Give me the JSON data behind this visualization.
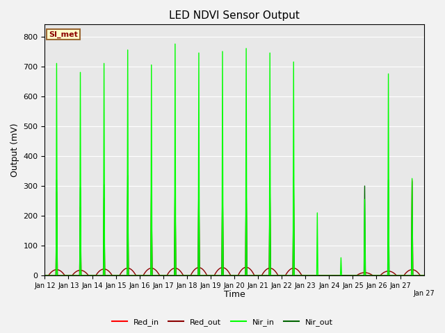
{
  "title": "LED NDVI Sensor Output",
  "xlabel": "Time",
  "ylabel": "Output (mV)",
  "ylim": [
    0,
    840
  ],
  "yticks": [
    0,
    100,
    200,
    300,
    400,
    500,
    600,
    700,
    800
  ],
  "bg_color": "#e8e8e8",
  "fig_color": "#f2f2f2",
  "legend_label": "SI_met",
  "series": {
    "Red_in": {
      "color": "#ff0000",
      "lw": 1.0
    },
    "Red_out": {
      "color": "#8b0000",
      "lw": 1.0
    },
    "Nir_in": {
      "color": "#00ff00",
      "lw": 1.0
    },
    "Nir_out": {
      "color": "#006400",
      "lw": 1.0
    }
  },
  "x_tick_labels": [
    "Jan 12",
    "Jan 13",
    "Jan 14",
    "Jan 15",
    "Jan 16",
    "Jan 17",
    "Jan 18",
    "Jan 19",
    "Jan 20",
    "Jan 21",
    "Jan 22",
    "Jan 23",
    "Jan 24",
    "Jan 25",
    "Jan 26",
    "Jan 27"
  ],
  "day_peaks": {
    "Red_in": [
      280,
      230,
      260,
      285,
      295,
      305,
      320,
      320,
      325,
      300,
      300,
      0,
      0,
      100,
      10,
      320
    ],
    "Red_out": [
      20,
      18,
      22,
      25,
      25,
      25,
      27,
      27,
      28,
      25,
      25,
      0,
      0,
      10,
      15,
      20
    ],
    "Nir_in": [
      710,
      680,
      710,
      755,
      705,
      775,
      745,
      750,
      760,
      745,
      715,
      210,
      60,
      255,
      675,
      325
    ],
    "Nir_out": [
      320,
      295,
      305,
      335,
      310,
      320,
      330,
      330,
      330,
      320,
      330,
      0,
      0,
      300,
      320,
      315
    ]
  },
  "n_days": 16,
  "pts_per_day": 500
}
